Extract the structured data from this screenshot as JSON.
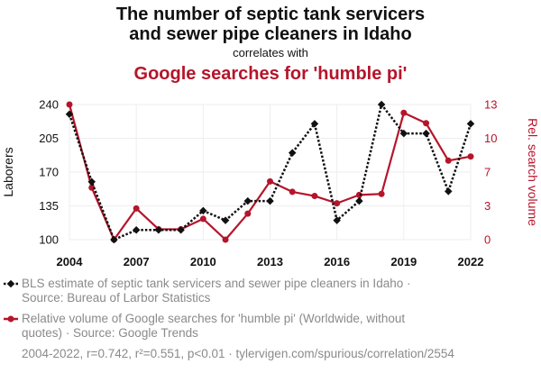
{
  "header": {
    "title_line1": "The number of septic tank servicers",
    "title_line2": "and sewer pipe cleaners in Idaho",
    "correlates": "correlates with",
    "title_series2": "Google searches for 'humble pi'"
  },
  "colors": {
    "series1": "#111111",
    "series2": "#b5152b",
    "grid": "#eeeeee",
    "muted": "#8a8a8a"
  },
  "legend": {
    "series1_line1": "BLS estimate of septic tank servicers and sewer pipe cleaners in Idaho ·",
    "series1_line2": "Source: Bureau of Larbor Statistics",
    "series2_line1": "Relative volume of Google searches for 'humble pi' (Worldwide, without",
    "series2_line2": "quotes) · Source: Google Trends"
  },
  "footer": {
    "text": "2004-2022, r=0.742, r²=0.551, p<0.01 · tylervigen.com/spurious/correlation/2554"
  },
  "chart_data": {
    "type": "line",
    "x": [
      2004,
      2005,
      2006,
      2007,
      2008,
      2009,
      2010,
      2011,
      2012,
      2013,
      2014,
      2015,
      2016,
      2017,
      2018,
      2019,
      2020,
      2021,
      2022
    ],
    "xticks": [
      "2004",
      "2007",
      "2010",
      "2013",
      "2016",
      "2019",
      "2022"
    ],
    "xtick_values": [
      2004,
      2007,
      2010,
      2013,
      2016,
      2019,
      2022
    ],
    "xlim": [
      2004,
      2022
    ],
    "grid": true,
    "legend_position": "bottom",
    "y_left": {
      "label": "Laborers",
      "ylim": [
        100,
        240
      ],
      "ticks": [
        "100",
        "135",
        "170",
        "205",
        "240"
      ],
      "tick_values": [
        100,
        135,
        170,
        205,
        240
      ]
    },
    "y_right": {
      "label": "Rel. search volume",
      "ylim": [
        0,
        13
      ],
      "ticks": [
        "0",
        "3",
        "7",
        "10",
        "13"
      ],
      "tick_values": [
        0,
        3.25,
        6.5,
        9.75,
        13
      ]
    },
    "series": [
      {
        "axis": "left",
        "values": [
          230,
          160,
          100,
          110,
          110,
          110,
          130,
          120,
          140,
          140,
          190,
          220,
          120,
          140,
          240,
          210,
          210,
          150,
          220
        ]
      },
      {
        "axis": "right",
        "values": [
          13,
          5,
          0,
          3,
          1,
          1,
          2,
          0,
          2.5,
          5.6,
          4.6,
          4.2,
          3.5,
          4.3,
          4.4,
          12.2,
          11.2,
          7.6,
          8.0
        ]
      }
    ]
  }
}
